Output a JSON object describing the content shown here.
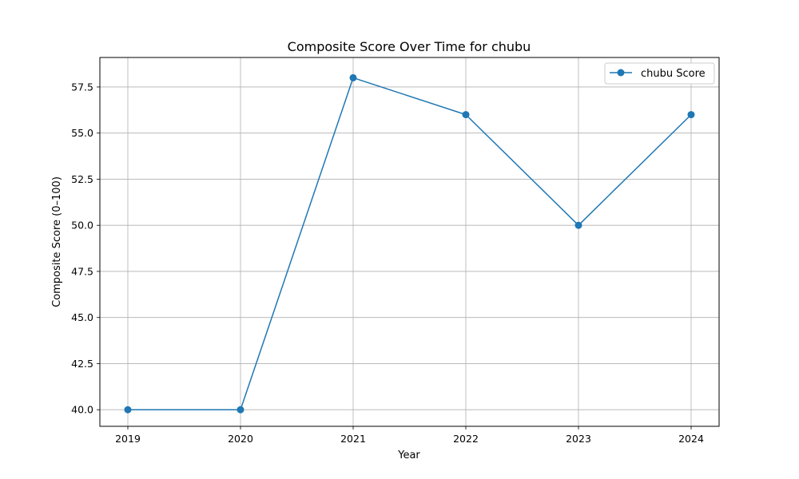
{
  "chart_data": {
    "type": "line",
    "title": "Composite Score Over Time for chubu",
    "xlabel": "Year",
    "ylabel": "Composite Score (0–100)",
    "categories": [
      "2019",
      "2020",
      "2021",
      "2022",
      "2023",
      "2024"
    ],
    "series": [
      {
        "name": "chubu Score",
        "values": [
          40,
          40,
          58,
          56,
          50,
          56
        ],
        "color": "#1f77b4",
        "marker": "circle"
      }
    ],
    "x_ticks": [
      "2019",
      "2020",
      "2021",
      "2022",
      "2023",
      "2024"
    ],
    "y_ticks": [
      "40.0",
      "42.5",
      "45.0",
      "47.5",
      "50.0",
      "52.5",
      "55.0",
      "57.5"
    ],
    "ylim": [
      39.1,
      59.1
    ],
    "grid": true,
    "legend_position": "top-right"
  }
}
